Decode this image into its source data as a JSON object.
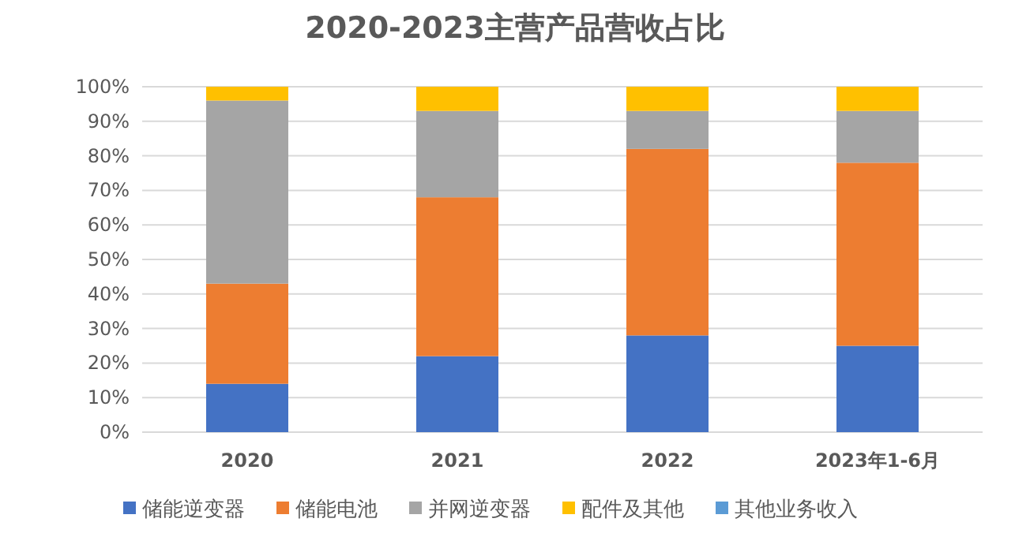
{
  "chart_data": {
    "type": "bar",
    "title": "2020-2023主营产品营收占比",
    "stacked": true,
    "grid": "y",
    "legend": "bottom",
    "categories": [
      "2020",
      "2021",
      "2022",
      "2023年1-6月"
    ],
    "ylim": [
      0,
      100
    ],
    "yticks": [
      {
        "value": 0,
        "label": "0%"
      },
      {
        "value": 10,
        "label": "10%"
      },
      {
        "value": 20,
        "label": "20%"
      },
      {
        "value": 30,
        "label": "30%"
      },
      {
        "value": 40,
        "label": "40%"
      },
      {
        "value": 50,
        "label": "50%"
      },
      {
        "value": 60,
        "label": "60%"
      },
      {
        "value": 70,
        "label": "70%"
      },
      {
        "value": 80,
        "label": "80%"
      },
      {
        "value": 90,
        "label": "90%"
      },
      {
        "value": 100,
        "label": "100%"
      }
    ],
    "series": [
      {
        "name": "储能逆变器",
        "color": "#4472c4",
        "values": [
          14,
          22,
          28,
          25
        ]
      },
      {
        "name": "储能电池",
        "color": "#ed7d31",
        "values": [
          29,
          46,
          54,
          53
        ]
      },
      {
        "name": "并网逆变器",
        "color": "#a5a5a5",
        "values": [
          53,
          25,
          11,
          15
        ]
      },
      {
        "name": "配件及其他",
        "color": "#ffc000",
        "values": [
          4,
          7,
          7,
          7
        ]
      },
      {
        "name": "其他业务收入",
        "color": "#5b9bd5",
        "values": [
          0,
          0,
          0,
          0
        ]
      }
    ]
  }
}
